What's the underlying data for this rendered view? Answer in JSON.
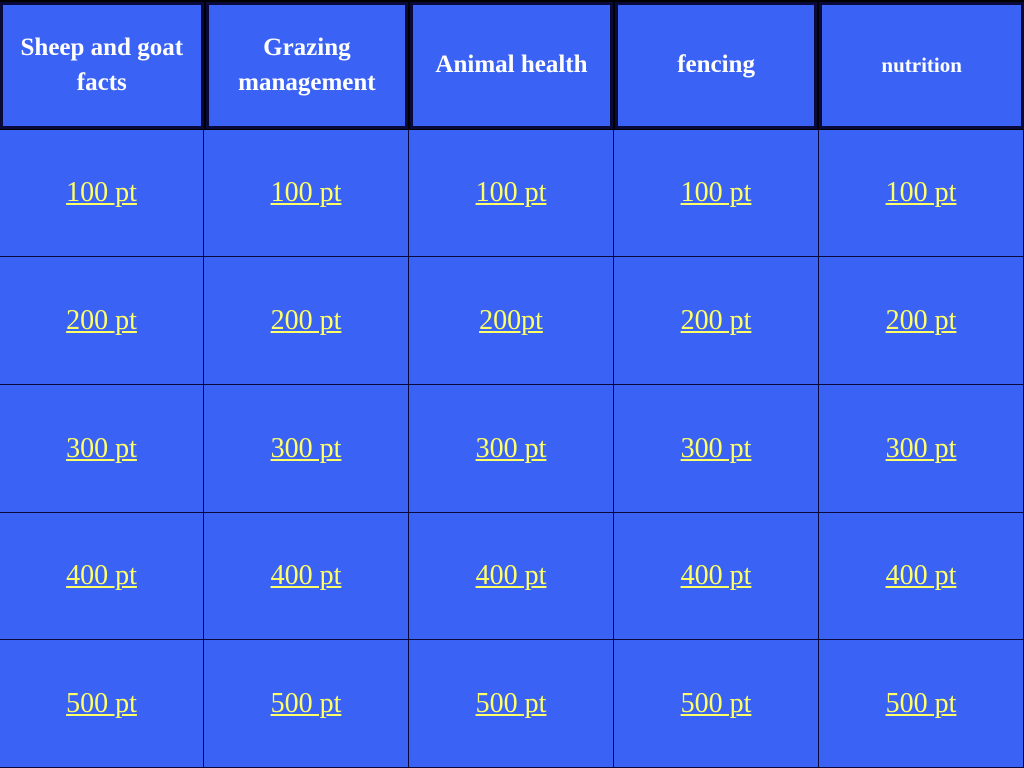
{
  "categories": [
    {
      "label": "Sheep and goat facts"
    },
    {
      "label": "Grazing management"
    },
    {
      "label": "Animal health"
    },
    {
      "label": "fencing"
    },
    {
      "label": "nutrition"
    }
  ],
  "rows": [
    [
      "100 pt",
      "100 pt",
      "100 pt",
      "100 pt",
      "100 pt"
    ],
    [
      "200 pt",
      "200 pt",
      "200pt",
      "200 pt",
      "200 pt"
    ],
    [
      "300 pt",
      "300 pt",
      "300 pt",
      "300 pt",
      "300 pt"
    ],
    [
      "400 pt",
      "400 pt",
      "400 pt",
      "400 pt",
      "400 pt"
    ],
    [
      "500 pt",
      "500 pt",
      "500 pt",
      "500 pt",
      "500 pt"
    ]
  ],
  "colors": {
    "cell_background": "#3a62f4",
    "link_text": "#ffff66",
    "header_text": "#ffffff",
    "grid_lines": "#000000"
  }
}
